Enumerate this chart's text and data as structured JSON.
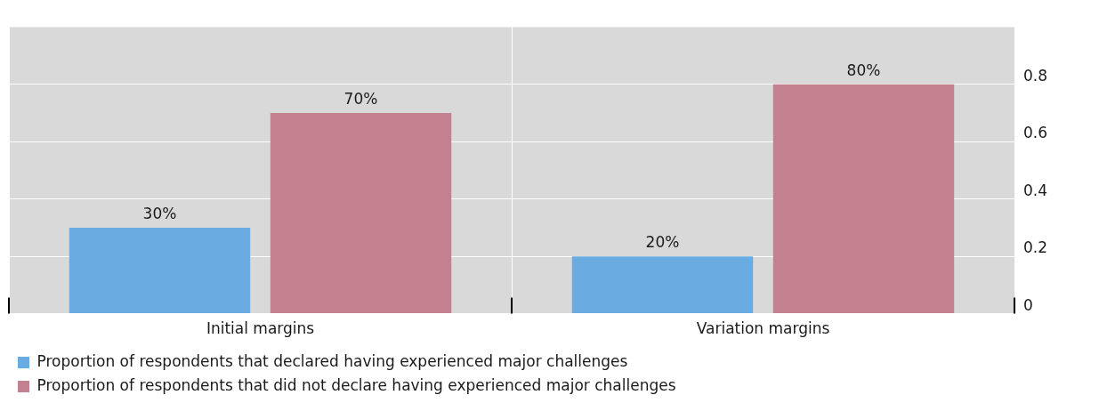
{
  "chart_data": {
    "type": "bar",
    "categories": [
      "Initial margins",
      "Variation margins"
    ],
    "series": [
      {
        "name": "Proportion of respondents that declared having experienced major challenges",
        "color": "#6aace1",
        "values": [
          0.3,
          0.2
        ],
        "value_labels": [
          "30%",
          "20%"
        ]
      },
      {
        "name": "Proportion of respondents that did not declare having experienced major challenges",
        "color": "#c3808f",
        "values": [
          0.7,
          0.8
        ],
        "value_labels": [
          "70%",
          "80%"
        ]
      }
    ],
    "ylim": [
      0,
      1
    ],
    "yticks": [
      0,
      0.2,
      0.4,
      0.6,
      0.8
    ],
    "grid": true,
    "legend": "bottom"
  }
}
